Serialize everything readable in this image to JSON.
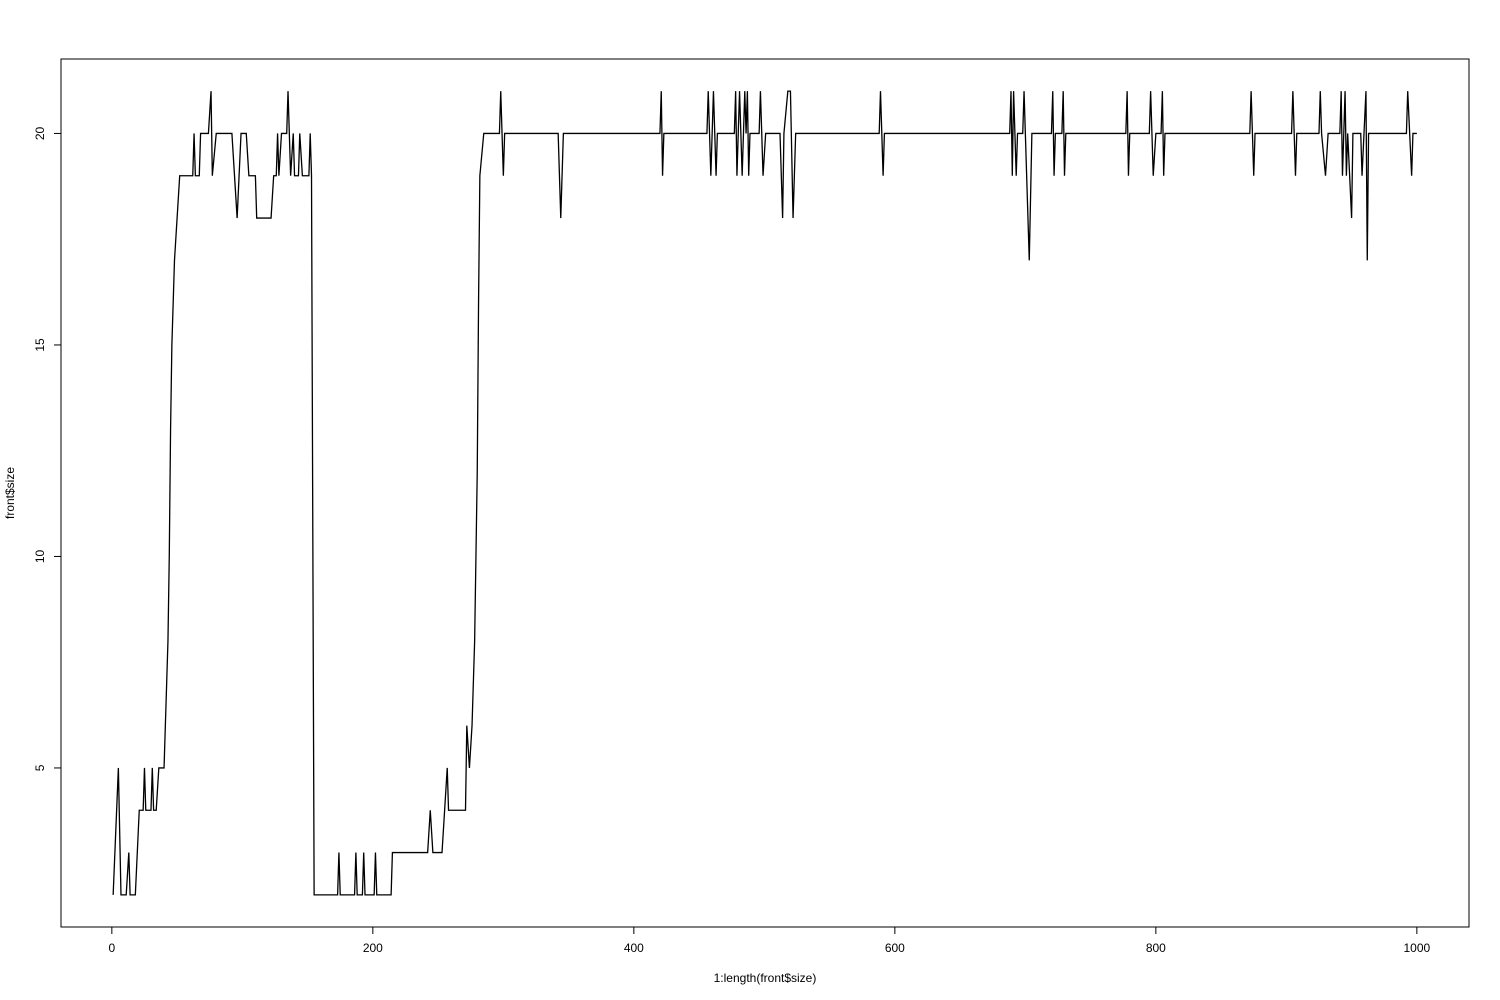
{
  "chart_data": {
    "type": "line",
    "x_label": "1:length(front$size)",
    "y_label": "front$size",
    "color": "#000000",
    "x": [
      1,
      5,
      7,
      11,
      13,
      14,
      18,
      21,
      24,
      25,
      26,
      30,
      31,
      32,
      34,
      36,
      40,
      41,
      42,
      43,
      44,
      45,
      46,
      48,
      50,
      52,
      62,
      63,
      64,
      67,
      68,
      74,
      76,
      77,
      80,
      92,
      96,
      99,
      103,
      105,
      110,
      111,
      122,
      124,
      126,
      127,
      128,
      130,
      134,
      135,
      137,
      139,
      140,
      143,
      144,
      146,
      151,
      152,
      153,
      155,
      173,
      174,
      175,
      186,
      187,
      188,
      192,
      193,
      194,
      201,
      202,
      203,
      214,
      215,
      242,
      244,
      246,
      253,
      255,
      257,
      258,
      271,
      272,
      274,
      276,
      278,
      280,
      281,
      282,
      285,
      297,
      298,
      300,
      301,
      342,
      344,
      346,
      420,
      421,
      422,
      423,
      456,
      457,
      459,
      461,
      463,
      464,
      477,
      478,
      479,
      481,
      483,
      485,
      486,
      487,
      488,
      489,
      496,
      497,
      499,
      501,
      512,
      514,
      515,
      518,
      520,
      522,
      524,
      588,
      589,
      591,
      592,
      688,
      689,
      690,
      691,
      693,
      694,
      698,
      699,
      703,
      705,
      720,
      721,
      722,
      723,
      728,
      729,
      730,
      731,
      777,
      778,
      779,
      780,
      795,
      796,
      798,
      800,
      804,
      805,
      806,
      807,
      872,
      873,
      875,
      876,
      904,
      905,
      907,
      908,
      925,
      926,
      927,
      930,
      932,
      941,
      942,
      943,
      945,
      946,
      947,
      950,
      951,
      957,
      958,
      961,
      962,
      963,
      992,
      993,
      996,
      997,
      1000
    ],
    "values": [
      2,
      5,
      2,
      2,
      3,
      2,
      2,
      4,
      4,
      5,
      4,
      4,
      5,
      4,
      4,
      5,
      5,
      6,
      7,
      8,
      10,
      13,
      15,
      17,
      18,
      19,
      19,
      20,
      19,
      19,
      20,
      20,
      21,
      19,
      20,
      20,
      18,
      20,
      20,
      19,
      19,
      18,
      18,
      19,
      19,
      20,
      19,
      20,
      20,
      21,
      19,
      20,
      19,
      19,
      20,
      19,
      19,
      20,
      19,
      2,
      2,
      3,
      2,
      2,
      3,
      2,
      2,
      3,
      2,
      2,
      3,
      2,
      2,
      3,
      3,
      4,
      3,
      3,
      4,
      5,
      4,
      4,
      6,
      5,
      6,
      8,
      12,
      16,
      19,
      20,
      20,
      21,
      19,
      20,
      20,
      18,
      20,
      20,
      21,
      19,
      20,
      20,
      21,
      19,
      21,
      19,
      20,
      20,
      21,
      19,
      21,
      19,
      21,
      20,
      21,
      19,
      20,
      20,
      21,
      19,
      20,
      20,
      18,
      20,
      21,
      21,
      18,
      20,
      20,
      21,
      19,
      20,
      20,
      21,
      19,
      21,
      19,
      20,
      20,
      21,
      17,
      20,
      20,
      21,
      19,
      20,
      20,
      21,
      19,
      20,
      20,
      21,
      19,
      20,
      20,
      21,
      19,
      20,
      20,
      21,
      19,
      20,
      20,
      21,
      19,
      20,
      20,
      21,
      19,
      20,
      20,
      21,
      20,
      19,
      20,
      20,
      21,
      19,
      21,
      19,
      20,
      18,
      20,
      20,
      19,
      21,
      17,
      20,
      20,
      21,
      19,
      20,
      20
    ],
    "xlim": [
      -38.96,
      1039.96
    ],
    "ylim": [
      1.24,
      21.76
    ],
    "xticks": [
      0,
      200,
      400,
      600,
      800,
      1000
    ],
    "yticks": [
      5,
      10,
      15,
      20
    ]
  }
}
